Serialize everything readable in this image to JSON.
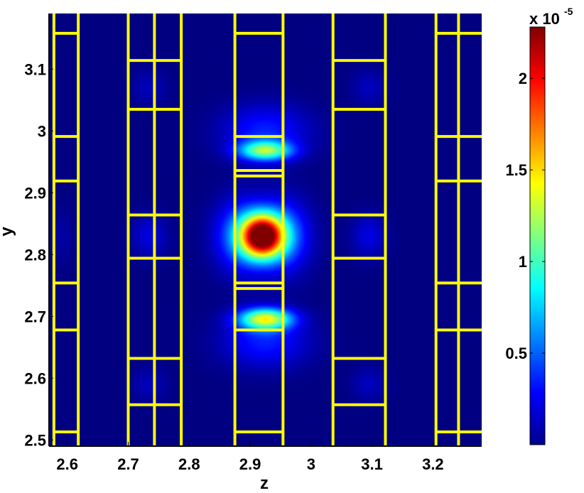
{
  "chart_data": {
    "type": "heatmap",
    "title": "",
    "xlabel": "z",
    "ylabel": "y",
    "xlim": [
      2.57,
      3.28
    ],
    "ylim": [
      2.49,
      3.19
    ],
    "x_ticks": [
      2.6,
      2.7,
      2.8,
      2.9,
      3,
      3.1,
      3.2
    ],
    "x_tick_labels": [
      "2.6",
      "2.7",
      "2.8",
      "2.9",
      "3",
      "3.1",
      "3.2"
    ],
    "y_ticks": [
      2.5,
      2.6,
      2.7,
      2.8,
      2.9,
      3,
      3.1
    ],
    "y_tick_labels": [
      "2.5",
      "2.6",
      "2.7",
      "2.8",
      "2.9",
      "3",
      "3.1"
    ],
    "colormap": "jet",
    "background_color": "#00008f",
    "structure_color": "#ffff00",
    "colorbar": {
      "range": [
        0,
        2.28
      ],
      "ticks": [
        0.5,
        1,
        1.5,
        2
      ],
      "tick_labels": [
        "0.5",
        "1",
        "1.5",
        "2"
      ],
      "multiplier_prefix": "x 10",
      "multiplier_exponent": "-5"
    },
    "hotspots": [
      {
        "z": 2.92,
        "y": 2.83,
        "peak": 2.28,
        "sigma_z": 0.024,
        "sigma_y": 0.024
      },
      {
        "z": 2.925,
        "y": 2.968,
        "peak": 1.1,
        "sigma_z": 0.03,
        "sigma_y": 0.011
      },
      {
        "z": 2.925,
        "y": 2.696,
        "peak": 1.3,
        "sigma_z": 0.03,
        "sigma_y": 0.012
      },
      {
        "z": 2.885,
        "y": 2.83,
        "peak": 0.55,
        "sigma_z": 0.03,
        "sigma_y": 0.04
      },
      {
        "z": 2.955,
        "y": 2.83,
        "peak": 0.55,
        "sigma_z": 0.03,
        "sigma_y": 0.04
      },
      {
        "z": 2.925,
        "y": 3.0,
        "peak": 0.35,
        "sigma_z": 0.05,
        "sigma_y": 0.03
      },
      {
        "z": 2.925,
        "y": 2.66,
        "peak": 0.35,
        "sigma_z": 0.05,
        "sigma_y": 0.03
      },
      {
        "z": 2.735,
        "y": 2.83,
        "peak": 0.22,
        "sigma_z": 0.02,
        "sigma_y": 0.025
      },
      {
        "z": 3.095,
        "y": 2.83,
        "peak": 0.22,
        "sigma_z": 0.02,
        "sigma_y": 0.025
      },
      {
        "z": 2.735,
        "y": 3.07,
        "peak": 0.14,
        "sigma_z": 0.02,
        "sigma_y": 0.02
      },
      {
        "z": 3.095,
        "y": 3.07,
        "peak": 0.14,
        "sigma_z": 0.02,
        "sigma_y": 0.02
      },
      {
        "z": 2.735,
        "y": 2.59,
        "peak": 0.14,
        "sigma_z": 0.02,
        "sigma_y": 0.02
      },
      {
        "z": 3.095,
        "y": 2.59,
        "peak": 0.14,
        "sigma_z": 0.02,
        "sigma_y": 0.02
      },
      {
        "z": 2.59,
        "y": 2.83,
        "peak": 0.08,
        "sigma_z": 0.015,
        "sigma_y": 0.03
      }
    ],
    "structure": {
      "vertical_lines_z": [
        2.578,
        2.618,
        2.7,
        2.743,
        2.787,
        2.875,
        2.954,
        3.036,
        3.122,
        3.205,
        3.242
      ],
      "columns": [
        {
          "z": [
            2.578,
            2.618
          ],
          "rungs_y": [
            3.158,
            2.991,
            2.919,
            2.754,
            2.678,
            2.513
          ]
        },
        {
          "z": [
            2.7,
            2.787
          ],
          "rungs_y": [
            3.114,
            3.035,
            2.864,
            2.794,
            2.632,
            2.557
          ]
        },
        {
          "z": [
            2.875,
            2.954
          ],
          "rungs_y": [
            3.158,
            2.991,
            2.936,
            2.927,
            2.754,
            2.745,
            2.678,
            2.513
          ]
        },
        {
          "z": [
            3.036,
            3.122
          ],
          "rungs_y": [
            3.114,
            3.035,
            2.864,
            2.794,
            2.632,
            2.557
          ]
        },
        {
          "z": [
            3.205,
            3.28
          ],
          "rungs_y": [
            3.158,
            2.991,
            2.919,
            2.754,
            2.678,
            2.513
          ]
        }
      ]
    }
  }
}
